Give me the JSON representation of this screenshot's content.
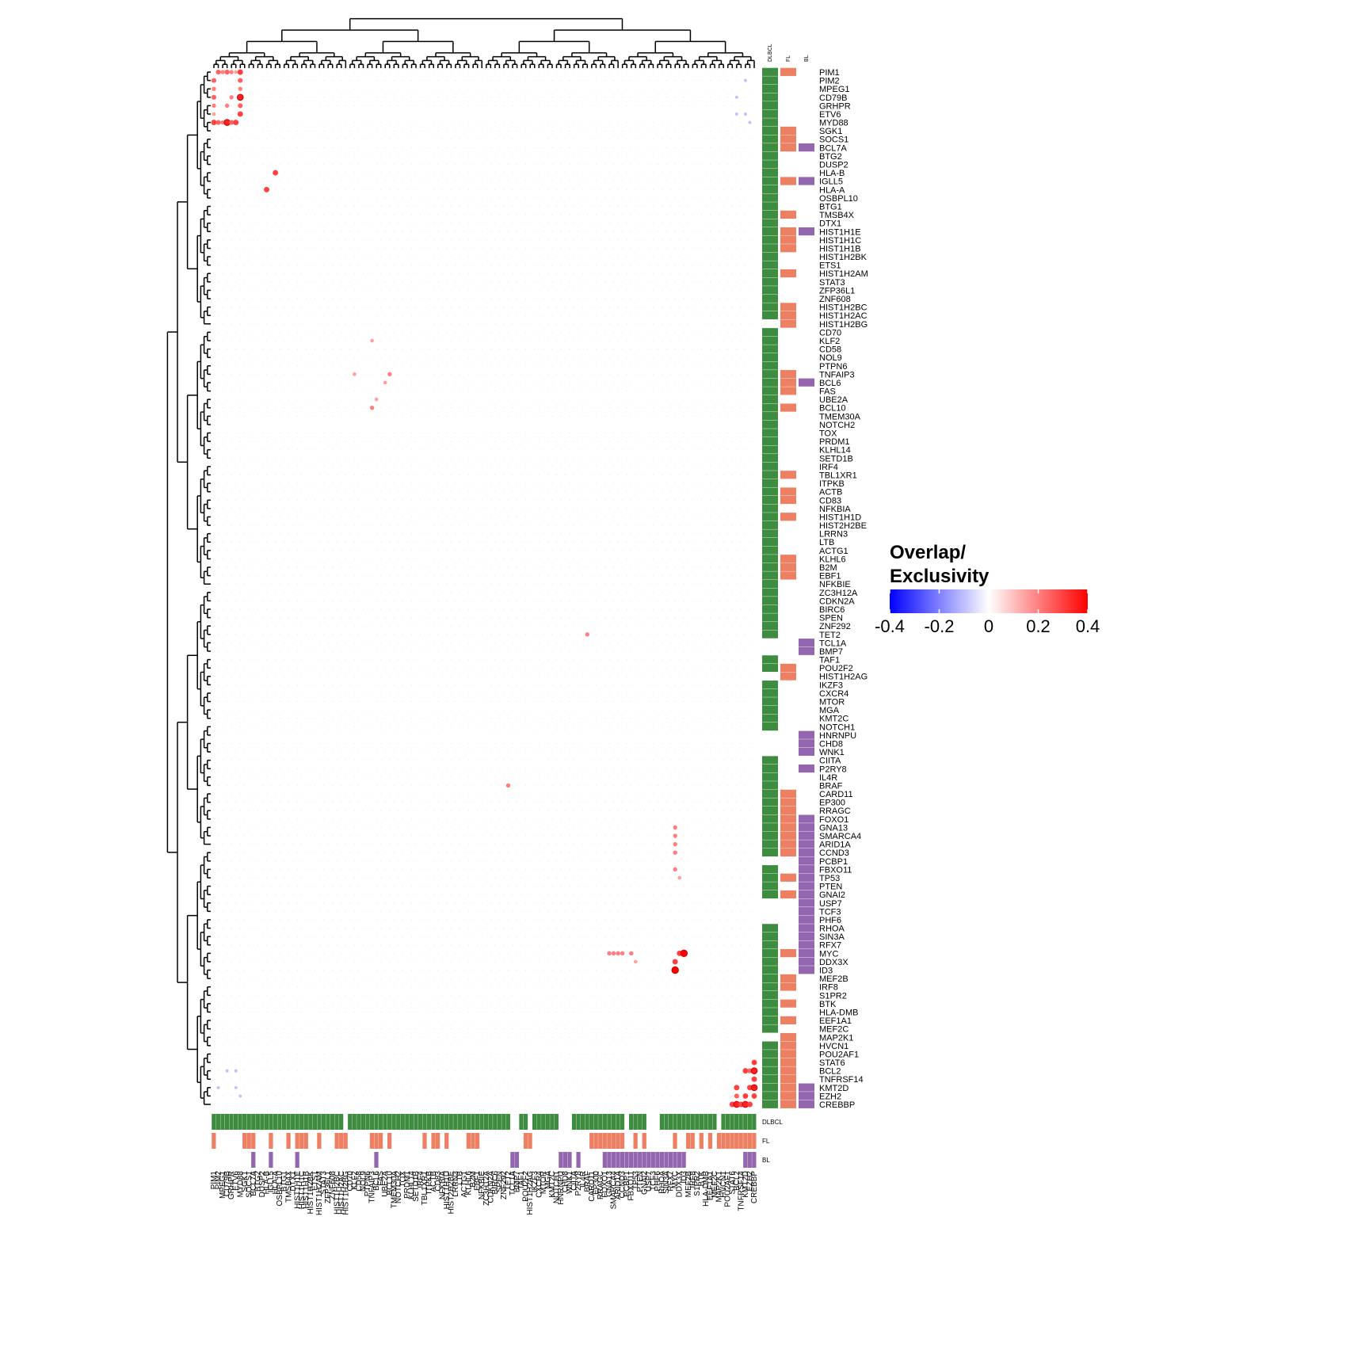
{
  "chart_data": {
    "type": "dotmatrix",
    "genes": [
      "PIM1",
      "PIM2",
      "MPEG1",
      "CD79B",
      "GRHPR",
      "ETV6",
      "MYD88",
      "SGK1",
      "SOCS1",
      "BCL7A",
      "BTG2",
      "DUSP2",
      "HLA-B",
      "IGLL5",
      "HLA-A",
      "OSBPL10",
      "BTG1",
      "TMSB4X",
      "DTX1",
      "HIST1H1E",
      "HIST1H1C",
      "HIST1H1B",
      "HIST1H2BK",
      "ETS1",
      "HIST1H2AM",
      "STAT3",
      "ZFP36L1",
      "ZNF608",
      "HIST1H2BC",
      "HIST1H2AC",
      "HIST1H2BG",
      "CD70",
      "KLF2",
      "CD58",
      "NOL9",
      "PTPN6",
      "TNFAIP3",
      "BCL6",
      "FAS",
      "UBE2A",
      "BCL10",
      "TMEM30A",
      "NOTCH2",
      "TOX",
      "PRDM1",
      "KLHL14",
      "SETD1B",
      "IRF4",
      "TBL1XR1",
      "ITPKB",
      "ACTB",
      "CD83",
      "NFKBIA",
      "HIST1H1D",
      "HIST2H2BE",
      "LRRN3",
      "LTB",
      "ACTG1",
      "KLHL6",
      "B2M",
      "EBF1",
      "NFKBIE",
      "ZC3H12A",
      "CDKN2A",
      "BIRC6",
      "SPEN",
      "ZNF292",
      "TET2",
      "TCL1A",
      "BMP7",
      "TAF1",
      "POU2F2",
      "HIST1H2AG",
      "IKZF3",
      "CXCR4",
      "MTOR",
      "MGA",
      "KMT2C",
      "NOTCH1",
      "HNRNPU",
      "CHD8",
      "WNK1",
      "CIITA",
      "P2RY8",
      "IL4R",
      "BRAF",
      "CARD11",
      "EP300",
      "RRAGC",
      "FOXO1",
      "GNA13",
      "SMARCA4",
      "ARID1A",
      "CCND3",
      "PCBP1",
      "FBXO11",
      "TP53",
      "PTEN",
      "GNAI2",
      "USP7",
      "TCF3",
      "PHF6",
      "RHOA",
      "SIN3A",
      "RFX7",
      "MYC",
      "DDX3X",
      "ID3",
      "MEF2B",
      "IRF8",
      "S1PR2",
      "BTK",
      "HLA-DMB",
      "EEF1A1",
      "MEF2C",
      "MAP2K1",
      "HVCN1",
      "POU2AF1",
      "STAT6",
      "BCL2",
      "TNFRSF14",
      "KMT2D",
      "EZH2",
      "CREBBP"
    ],
    "annotations": [
      {
        "name": "DLBCL",
        "color": "#3d8c40",
        "values": [
          1,
          1,
          1,
          1,
          1,
          1,
          1,
          1,
          1,
          1,
          1,
          1,
          1,
          1,
          1,
          1,
          1,
          1,
          1,
          1,
          1,
          1,
          1,
          1,
          1,
          1,
          1,
          1,
          1,
          1,
          0,
          1,
          1,
          1,
          1,
          1,
          1,
          1,
          1,
          1,
          1,
          1,
          1,
          1,
          1,
          1,
          1,
          1,
          1,
          1,
          1,
          1,
          1,
          1,
          1,
          1,
          1,
          1,
          1,
          1,
          1,
          1,
          1,
          1,
          1,
          1,
          1,
          1,
          0,
          0,
          1,
          1,
          0,
          1,
          1,
          1,
          1,
          1,
          1,
          0,
          0,
          0,
          1,
          1,
          1,
          1,
          1,
          1,
          1,
          1,
          1,
          1,
          1,
          1,
          0,
          1,
          1,
          1,
          1,
          0,
          0,
          0,
          1,
          1,
          1,
          1,
          1,
          1,
          1,
          1,
          1,
          1,
          1,
          1,
          1,
          0,
          1,
          1,
          1,
          1,
          1,
          1,
          1,
          1
        ]
      },
      {
        "name": "FL",
        "color": "#ed7f62",
        "values": [
          1,
          0,
          0,
          0,
          0,
          0,
          0,
          1,
          1,
          1,
          0,
          0,
          0,
          1,
          0,
          0,
          0,
          1,
          0,
          1,
          1,
          1,
          0,
          0,
          1,
          0,
          0,
          0,
          1,
          1,
          1,
          0,
          0,
          0,
          0,
          0,
          1,
          1,
          1,
          0,
          1,
          0,
          0,
          0,
          0,
          0,
          0,
          0,
          1,
          0,
          1,
          1,
          0,
          1,
          0,
          0,
          0,
          0,
          1,
          1,
          1,
          0,
          0,
          0,
          0,
          0,
          0,
          0,
          0,
          0,
          0,
          1,
          1,
          0,
          0,
          0,
          0,
          0,
          0,
          0,
          0,
          0,
          0,
          0,
          0,
          0,
          1,
          1,
          1,
          1,
          1,
          1,
          1,
          1,
          0,
          0,
          1,
          0,
          1,
          0,
          0,
          0,
          0,
          0,
          0,
          1,
          0,
          0,
          1,
          1,
          0,
          1,
          0,
          1,
          0,
          1,
          1,
          1,
          1,
          1,
          1,
          1,
          1,
          1
        ]
      },
      {
        "name": "BL",
        "color": "#9466b0",
        "values": [
          0,
          0,
          0,
          0,
          0,
          0,
          0,
          0,
          0,
          1,
          0,
          0,
          0,
          1,
          0,
          0,
          0,
          0,
          0,
          1,
          0,
          0,
          0,
          0,
          0,
          0,
          0,
          0,
          0,
          0,
          0,
          0,
          0,
          0,
          0,
          0,
          0,
          1,
          0,
          0,
          0,
          0,
          0,
          0,
          0,
          0,
          0,
          0,
          0,
          0,
          0,
          0,
          0,
          0,
          0,
          0,
          0,
          0,
          0,
          0,
          0,
          0,
          0,
          0,
          0,
          0,
          0,
          0,
          1,
          1,
          0,
          0,
          0,
          0,
          0,
          0,
          0,
          0,
          0,
          1,
          1,
          1,
          0,
          1,
          0,
          0,
          0,
          0,
          0,
          1,
          1,
          1,
          1,
          1,
          1,
          1,
          1,
          1,
          1,
          1,
          1,
          1,
          1,
          1,
          1,
          1,
          1,
          1,
          0,
          0,
          0,
          0,
          0,
          0,
          0,
          0,
          0,
          0,
          0,
          0,
          0,
          1,
          1,
          1
        ]
      }
    ],
    "cells": [
      [
        0,
        1,
        0.25
      ],
      [
        0,
        2,
        0.2
      ],
      [
        0,
        3,
        0.25
      ],
      [
        0,
        4,
        0.2
      ],
      [
        0,
        5,
        0.15
      ],
      [
        0,
        6,
        0.3
      ],
      [
        1,
        6,
        0.25
      ],
      [
        2,
        6,
        0.2
      ],
      [
        3,
        6,
        0.35
      ],
      [
        4,
        6,
        0.25
      ],
      [
        5,
        6,
        0.3
      ],
      [
        3,
        4,
        0.2
      ],
      [
        12,
        14,
        0.3
      ],
      [
        32,
        36,
        0.15
      ],
      [
        36,
        40,
        0.2
      ],
      [
        37,
        39,
        0.15
      ],
      [
        67,
        85,
        0.2
      ],
      [
        90,
        105,
        0.2
      ],
      [
        91,
        105,
        0.2
      ],
      [
        92,
        105,
        0.2
      ],
      [
        93,
        105,
        0.2
      ],
      [
        95,
        105,
        0.2
      ],
      [
        96,
        106,
        0.15
      ],
      [
        105,
        106,
        0.3
      ],
      [
        105,
        107,
        0.4
      ],
      [
        118,
        123,
        0.3
      ],
      [
        119,
        121,
        0.3
      ],
      [
        119,
        122,
        0.25
      ],
      [
        119,
        123,
        0.35
      ],
      [
        120,
        123,
        0.3
      ],
      [
        121,
        122,
        0.3
      ],
      [
        121,
        123,
        0.35
      ],
      [
        122,
        123,
        0.3
      ],
      [
        119,
        3,
        -0.1
      ],
      [
        122,
        6,
        -0.1
      ],
      [
        121,
        1,
        -0.1
      ],
      [
        5,
        119,
        -0.1
      ],
      [
        5,
        121,
        -0.1
      ]
    ],
    "colors": [
      "#0000ff",
      "#ffffff",
      "#ff0000"
    ],
    "legend": {
      "title": [
        "Overlap/",
        "Exclusivity"
      ],
      "ticks": [
        -0.4,
        -0.2,
        0,
        0.2,
        0.4
      ]
    }
  }
}
